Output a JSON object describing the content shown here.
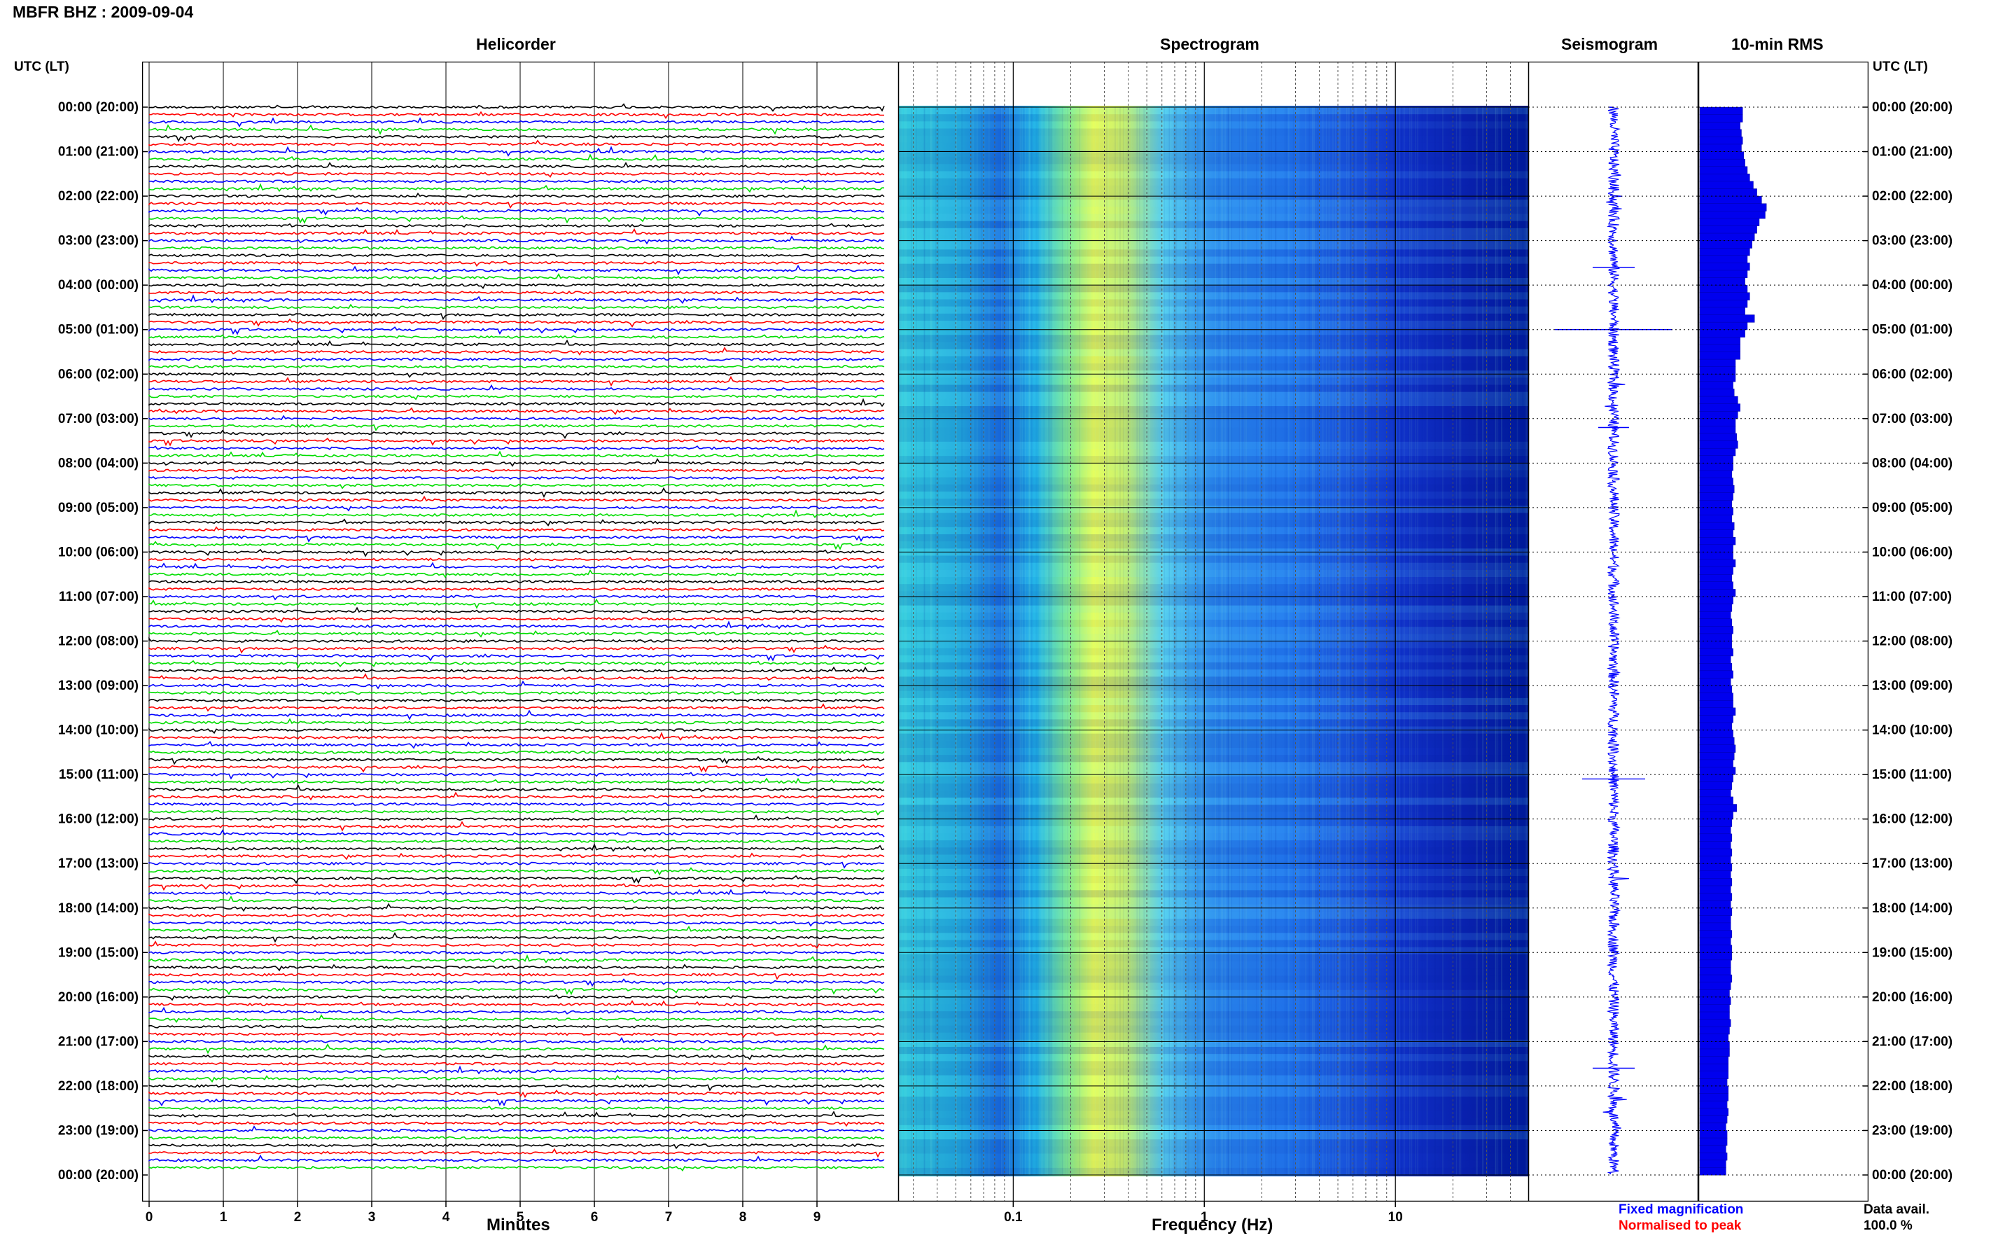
{
  "header": {
    "title": "MBFR BHZ : 2009-09-04"
  },
  "panels": {
    "helicorder": "Helicorder",
    "spectrogram": "Spectrogram",
    "seismogram": "Seismogram",
    "rms": "10-min RMS"
  },
  "axes": {
    "left_label": "UTC (LT)",
    "right_label": "UTC (LT)",
    "minutes_label": "Minutes",
    "frequency_label": "Frequency (Hz)"
  },
  "legend": {
    "fixed": "Fixed magnification",
    "normalised": "Normalised to peak",
    "data_avail_label": "Data avail.",
    "data_avail_value": "100.0 %"
  },
  "colors": {
    "fixed": "#0000ff",
    "normalised": "#ff0000",
    "trace_cycle": [
      "#000000",
      "#ff0000",
      "#0000ff",
      "#00dd00"
    ],
    "spectrogram_low": "#0000aa",
    "spectrogram_high": "#ffff33"
  },
  "chart_data": [
    {
      "type": "line",
      "name": "helicorder",
      "x_label": "Minutes",
      "x_ticks": [
        0,
        1,
        2,
        3,
        4,
        5,
        6,
        7,
        8,
        9
      ],
      "xlim": [
        0,
        10
      ],
      "y_tick_labels_left": [
        "00:00 (20:00)",
        "01:00 (21:00)",
        "02:00 (22:00)",
        "03:00 (23:00)",
        "04:00 (00:00)",
        "05:00 (01:00)",
        "06:00 (02:00)",
        "07:00 (03:00)",
        "08:00 (04:00)",
        "09:00 (05:00)",
        "10:00 (06:00)",
        "11:00 (07:00)",
        "12:00 (08:00)",
        "13:00 (09:00)",
        "14:00 (10:00)",
        "15:00 (11:00)",
        "16:00 (12:00)",
        "17:00 (13:00)",
        "18:00 (14:00)",
        "19:00 (15:00)",
        "20:00 (16:00)",
        "21:00 (17:00)",
        "22:00 (18:00)",
        "23:00 (19:00)",
        "00:00 (20:00)"
      ],
      "traces_per_hour": 6,
      "hours": 24
    },
    {
      "type": "heatmap",
      "name": "spectrogram",
      "x_label": "Frequency (Hz)",
      "x_scale": "log",
      "x_ticks": [
        0.1,
        1,
        10
      ],
      "x_tick_labels": [
        "0.1",
        "1",
        "10"
      ],
      "xlim": [
        0.025,
        50
      ],
      "peak_band_hz": [
        0.18,
        0.6
      ]
    },
    {
      "type": "line",
      "name": "seismogram",
      "notable_spikes_utc": [
        "05:00",
        "15:00",
        "21:30"
      ]
    },
    {
      "type": "bar",
      "name": "10-min RMS",
      "orientation": "horizontal",
      "values": [
        0.36,
        0.36,
        0.34,
        0.35,
        0.36,
        0.35,
        0.37,
        0.38,
        0.4,
        0.42,
        0.45,
        0.48,
        0.52,
        0.56,
        0.55,
        0.5,
        0.48,
        0.46,
        0.44,
        0.42,
        0.4,
        0.42,
        0.4,
        0.38,
        0.4,
        0.42,
        0.4,
        0.38,
        0.46,
        0.4,
        0.38,
        0.34,
        0.34,
        0.34,
        0.3,
        0.3,
        0.3,
        0.28,
        0.29,
        0.32,
        0.34,
        0.32,
        0.3,
        0.3,
        0.31,
        0.32,
        0.3,
        0.28,
        0.28,
        0.27,
        0.28,
        0.29,
        0.28,
        0.27,
        0.28,
        0.27,
        0.29,
        0.28,
        0.3,
        0.28,
        0.28,
        0.3,
        0.28,
        0.27,
        0.28,
        0.3,
        0.28,
        0.27,
        0.26,
        0.27,
        0.28,
        0.27,
        0.27,
        0.28,
        0.26,
        0.27,
        0.28,
        0.26,
        0.27,
        0.28,
        0.28,
        0.3,
        0.28,
        0.27,
        0.28,
        0.29,
        0.3,
        0.29,
        0.28,
        0.3,
        0.28,
        0.27,
        0.26,
        0.28,
        0.31,
        0.28,
        0.27,
        0.26,
        0.27,
        0.26,
        0.27,
        0.26,
        0.27,
        0.26,
        0.27,
        0.26,
        0.27,
        0.26,
        0.27,
        0.26,
        0.26,
        0.27,
        0.26,
        0.27,
        0.27,
        0.26,
        0.26,
        0.27,
        0.26,
        0.25,
        0.26,
        0.25,
        0.25,
        0.26,
        0.25,
        0.24,
        0.25,
        0.25,
        0.24,
        0.24,
        0.24,
        0.23,
        0.24,
        0.24,
        0.23,
        0.24,
        0.23,
        0.22,
        0.23,
        0.23,
        0.22,
        0.23,
        0.22,
        0.22
      ],
      "xlim": [
        0,
        1
      ]
    }
  ]
}
